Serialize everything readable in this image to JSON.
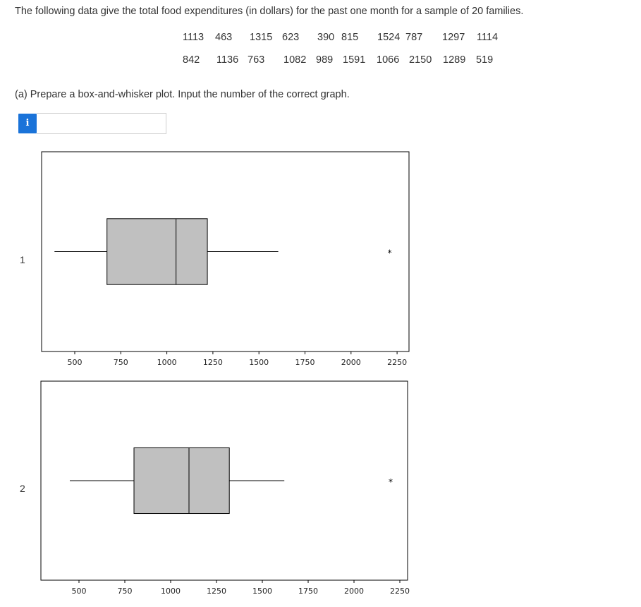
{
  "question": {
    "prompt": "The following data give the total food expenditures (in dollars) for the past one month for a sample of 20 families.",
    "data_row_1": [
      "1113",
      "463",
      "1315",
      "623",
      "390",
      "815",
      "1524",
      "787",
      "1297",
      "1114"
    ],
    "data_row_2": [
      "842",
      "1136",
      "763",
      "1082",
      "989",
      "1591",
      "1066",
      "2150",
      "1289",
      "519"
    ],
    "part_a": "(a) Prepare a box-and-whisker plot. Input the number of the correct graph.",
    "info_icon": "i",
    "answer_value": ""
  },
  "chart_data": [
    {
      "type": "box",
      "label": "1",
      "x_ticks": [
        "500",
        "750",
        "1000",
        "1250",
        "1500",
        "1750",
        "2000",
        "2250"
      ],
      "xlim": [
        350,
        2350
      ],
      "whisker_low": 390,
      "q1": 675,
      "median": 1050,
      "q3": 1220,
      "whisker_high": 1605,
      "outliers": [
        2210
      ]
    },
    {
      "type": "box",
      "label": "2",
      "x_ticks": [
        "500",
        "750",
        "1000",
        "1250",
        "1500",
        "1750",
        "2000",
        "2250"
      ],
      "xlim": [
        350,
        2350
      ],
      "whisker_low": 450,
      "q1": 800,
      "median": 1100,
      "q3": 1320,
      "whisker_high": 1620,
      "outliers": [
        2200
      ]
    }
  ]
}
